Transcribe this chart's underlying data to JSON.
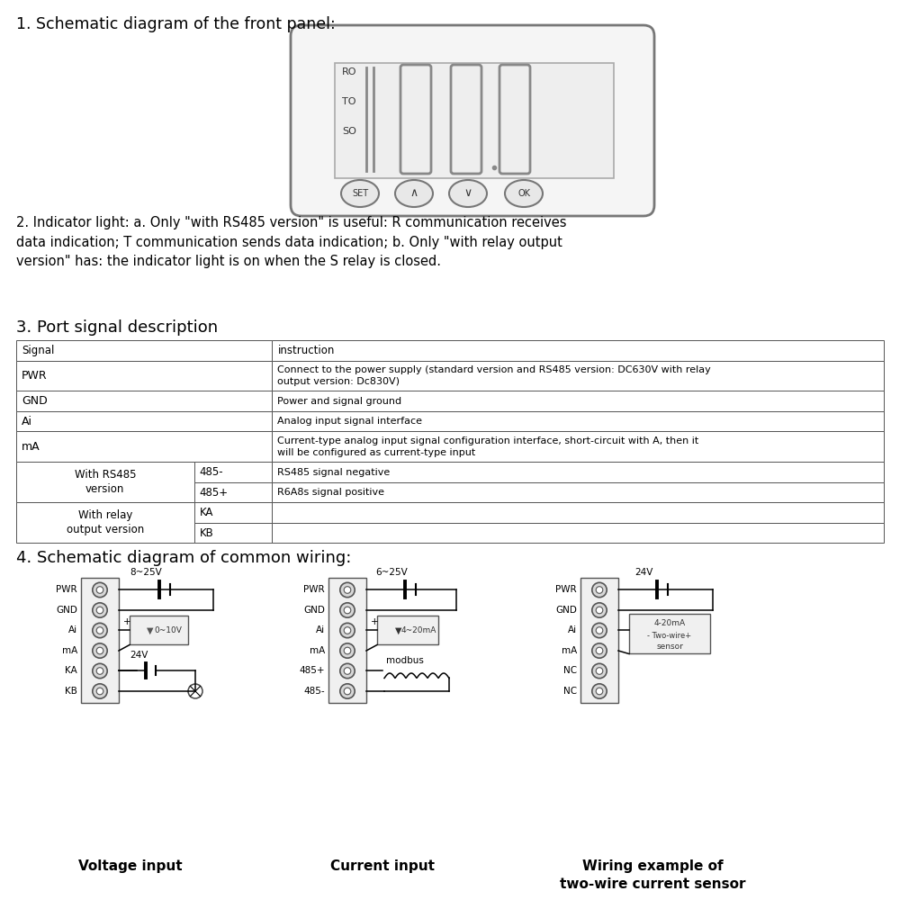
{
  "bg_color": "#ffffff",
  "text_color": "#000000",
  "section1_title": "1. Schematic diagram of the front panel:",
  "section2_text": "2. Indicator light: a. Only \"with RS485 version\" is useful: R communication receives\ndata indication; T communication sends data indication; b. Only \"with relay output\nversion\" has: the indicator light is on when the S relay is closed.",
  "section3_title": "3. Port signal description",
  "section4_title": "4. Schematic diagram of common wiring:",
  "wiring_labels": [
    "Voltage input",
    "Current input",
    "Wiring example of\ntwo-wire current sensor"
  ]
}
